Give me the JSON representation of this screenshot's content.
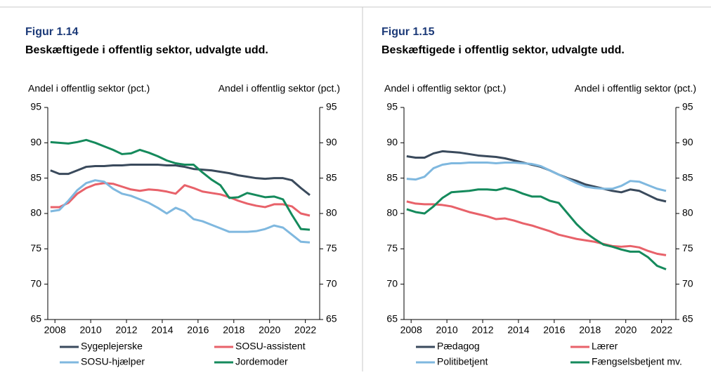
{
  "chart_data": [
    {
      "type": "line",
      "figure": "Figur 1.14",
      "title": "Beskæftigede i offentlig sektor, udvalgte udd.",
      "ylabel": "Andel i offentlig sektor (pct.)",
      "y2label": "Andel i offentlig sektor (pct.)",
      "x": [
        2007.75,
        2008.25,
        2008.75,
        2009.25,
        2009.75,
        2010.25,
        2010.75,
        2011.25,
        2011.75,
        2012.25,
        2012.75,
        2013.25,
        2013.75,
        2014.25,
        2014.75,
        2015.25,
        2015.75,
        2016.25,
        2016.75,
        2017.25,
        2017.75,
        2018.25,
        2018.75,
        2019.25,
        2019.75,
        2020.25,
        2020.75,
        2021.25,
        2021.75,
        2022.25
      ],
      "xlim": [
        2007.6,
        2022.8
      ],
      "xticks": [
        2008,
        2010,
        2012,
        2014,
        2016,
        2018,
        2020,
        2022
      ],
      "ylim": [
        65,
        95
      ],
      "yticks": [
        65,
        70,
        75,
        80,
        85,
        90,
        95
      ],
      "y2lim": [
        65,
        95
      ],
      "y2ticks": [
        65,
        70,
        75,
        80,
        85,
        90,
        95
      ],
      "series": [
        {
          "name": "Sygeplejerske",
          "color": "#3a4a5c",
          "values": [
            86.1,
            85.6,
            85.6,
            86.1,
            86.6,
            86.7,
            86.7,
            86.8,
            86.8,
            86.9,
            86.9,
            86.9,
            86.9,
            86.8,
            86.8,
            86.6,
            86.3,
            86.2,
            86.1,
            85.9,
            85.7,
            85.4,
            85.2,
            85.0,
            84.9,
            85.0,
            85.0,
            84.7,
            83.6,
            82.6
          ]
        },
        {
          "name": "SOSU-assistent",
          "color": "#e8626a",
          "values": [
            80.9,
            80.9,
            81.5,
            82.8,
            83.6,
            84.1,
            84.3,
            84.2,
            83.8,
            83.4,
            83.2,
            83.4,
            83.3,
            83.1,
            82.8,
            84.0,
            83.6,
            83.1,
            82.9,
            82.7,
            82.3,
            81.8,
            81.4,
            81.1,
            80.9,
            81.3,
            81.3,
            81.0,
            80.0,
            79.7
          ]
        },
        {
          "name": "SOSU-hjælper",
          "color": "#7fb8df",
          "values": [
            80.3,
            80.5,
            81.8,
            83.3,
            84.3,
            84.7,
            84.5,
            83.5,
            82.8,
            82.5,
            82.0,
            81.5,
            80.8,
            80.0,
            80.8,
            80.3,
            79.2,
            78.9,
            78.4,
            77.9,
            77.4,
            77.4,
            77.4,
            77.5,
            77.8,
            78.3,
            78.0,
            77.0,
            76.0,
            75.9
          ]
        },
        {
          "name": "Jordemoder",
          "color": "#158a5c",
          "values": [
            90.1,
            90.0,
            89.9,
            90.1,
            90.4,
            90.0,
            89.5,
            89.0,
            88.4,
            88.5,
            89.0,
            88.6,
            88.1,
            87.5,
            87.1,
            86.9,
            86.9,
            85.8,
            84.8,
            84.0,
            82.2,
            82.3,
            82.9,
            82.6,
            82.3,
            82.4,
            82.0,
            79.8,
            77.8,
            77.7
          ]
        }
      ]
    },
    {
      "type": "line",
      "figure": "Figur 1.15",
      "title": "Beskæftigede i offentlig sektor, udvalgte udd.",
      "ylabel": "Andel i offentlig sektor (pct.)",
      "y2label": "Andel i offentlig sektor (pct.)",
      "x": [
        2007.75,
        2008.25,
        2008.75,
        2009.25,
        2009.75,
        2010.25,
        2010.75,
        2011.25,
        2011.75,
        2012.25,
        2012.75,
        2013.25,
        2013.75,
        2014.25,
        2014.75,
        2015.25,
        2015.75,
        2016.25,
        2016.75,
        2017.25,
        2017.75,
        2018.25,
        2018.75,
        2019.25,
        2019.75,
        2020.25,
        2020.75,
        2021.25,
        2021.75,
        2022.25
      ],
      "xlim": [
        2007.6,
        2022.8
      ],
      "xticks": [
        2008,
        2010,
        2012,
        2014,
        2016,
        2018,
        2020,
        2022
      ],
      "ylim": [
        65,
        95
      ],
      "yticks": [
        65,
        70,
        75,
        80,
        85,
        90,
        95
      ],
      "y2lim": [
        65,
        95
      ],
      "y2ticks": [
        65,
        70,
        75,
        80,
        85,
        90,
        95
      ],
      "series": [
        {
          "name": "Pædagog",
          "color": "#3a4a5c",
          "values": [
            88.1,
            87.9,
            87.9,
            88.5,
            88.8,
            88.7,
            88.6,
            88.4,
            88.2,
            88.1,
            88.0,
            87.8,
            87.5,
            87.2,
            86.9,
            86.6,
            86.1,
            85.5,
            85.0,
            84.6,
            84.1,
            83.8,
            83.5,
            83.2,
            83.0,
            83.4,
            83.2,
            82.6,
            82.0,
            81.7
          ]
        },
        {
          "name": "Lærer",
          "color": "#e8626a",
          "values": [
            81.7,
            81.4,
            81.3,
            81.3,
            81.2,
            81.0,
            80.6,
            80.2,
            79.9,
            79.6,
            79.2,
            79.3,
            79.0,
            78.6,
            78.3,
            77.9,
            77.5,
            77.0,
            76.7,
            76.4,
            76.2,
            76.0,
            75.7,
            75.4,
            75.3,
            75.4,
            75.2,
            74.7,
            74.3,
            74.1
          ]
        },
        {
          "name": "Politibetjent",
          "color": "#7fb8df",
          "values": [
            84.9,
            84.8,
            85.2,
            86.4,
            86.9,
            87.1,
            87.1,
            87.2,
            87.2,
            87.2,
            87.1,
            87.2,
            87.2,
            87.1,
            87.0,
            86.7,
            86.1,
            85.5,
            84.9,
            84.3,
            83.8,
            83.6,
            83.5,
            83.5,
            83.9,
            84.6,
            84.5,
            84.0,
            83.5,
            83.2
          ]
        },
        {
          "name": "Fængselsbetjent mv.",
          "color": "#158a5c",
          "values": [
            80.6,
            80.2,
            80.0,
            81.0,
            82.2,
            83.0,
            83.1,
            83.2,
            83.4,
            83.4,
            83.3,
            83.6,
            83.3,
            82.8,
            82.4,
            82.4,
            81.8,
            81.5,
            80.0,
            78.5,
            77.3,
            76.4,
            75.6,
            75.3,
            74.9,
            74.6,
            74.6,
            73.8,
            72.6,
            72.1
          ]
        }
      ]
    }
  ]
}
